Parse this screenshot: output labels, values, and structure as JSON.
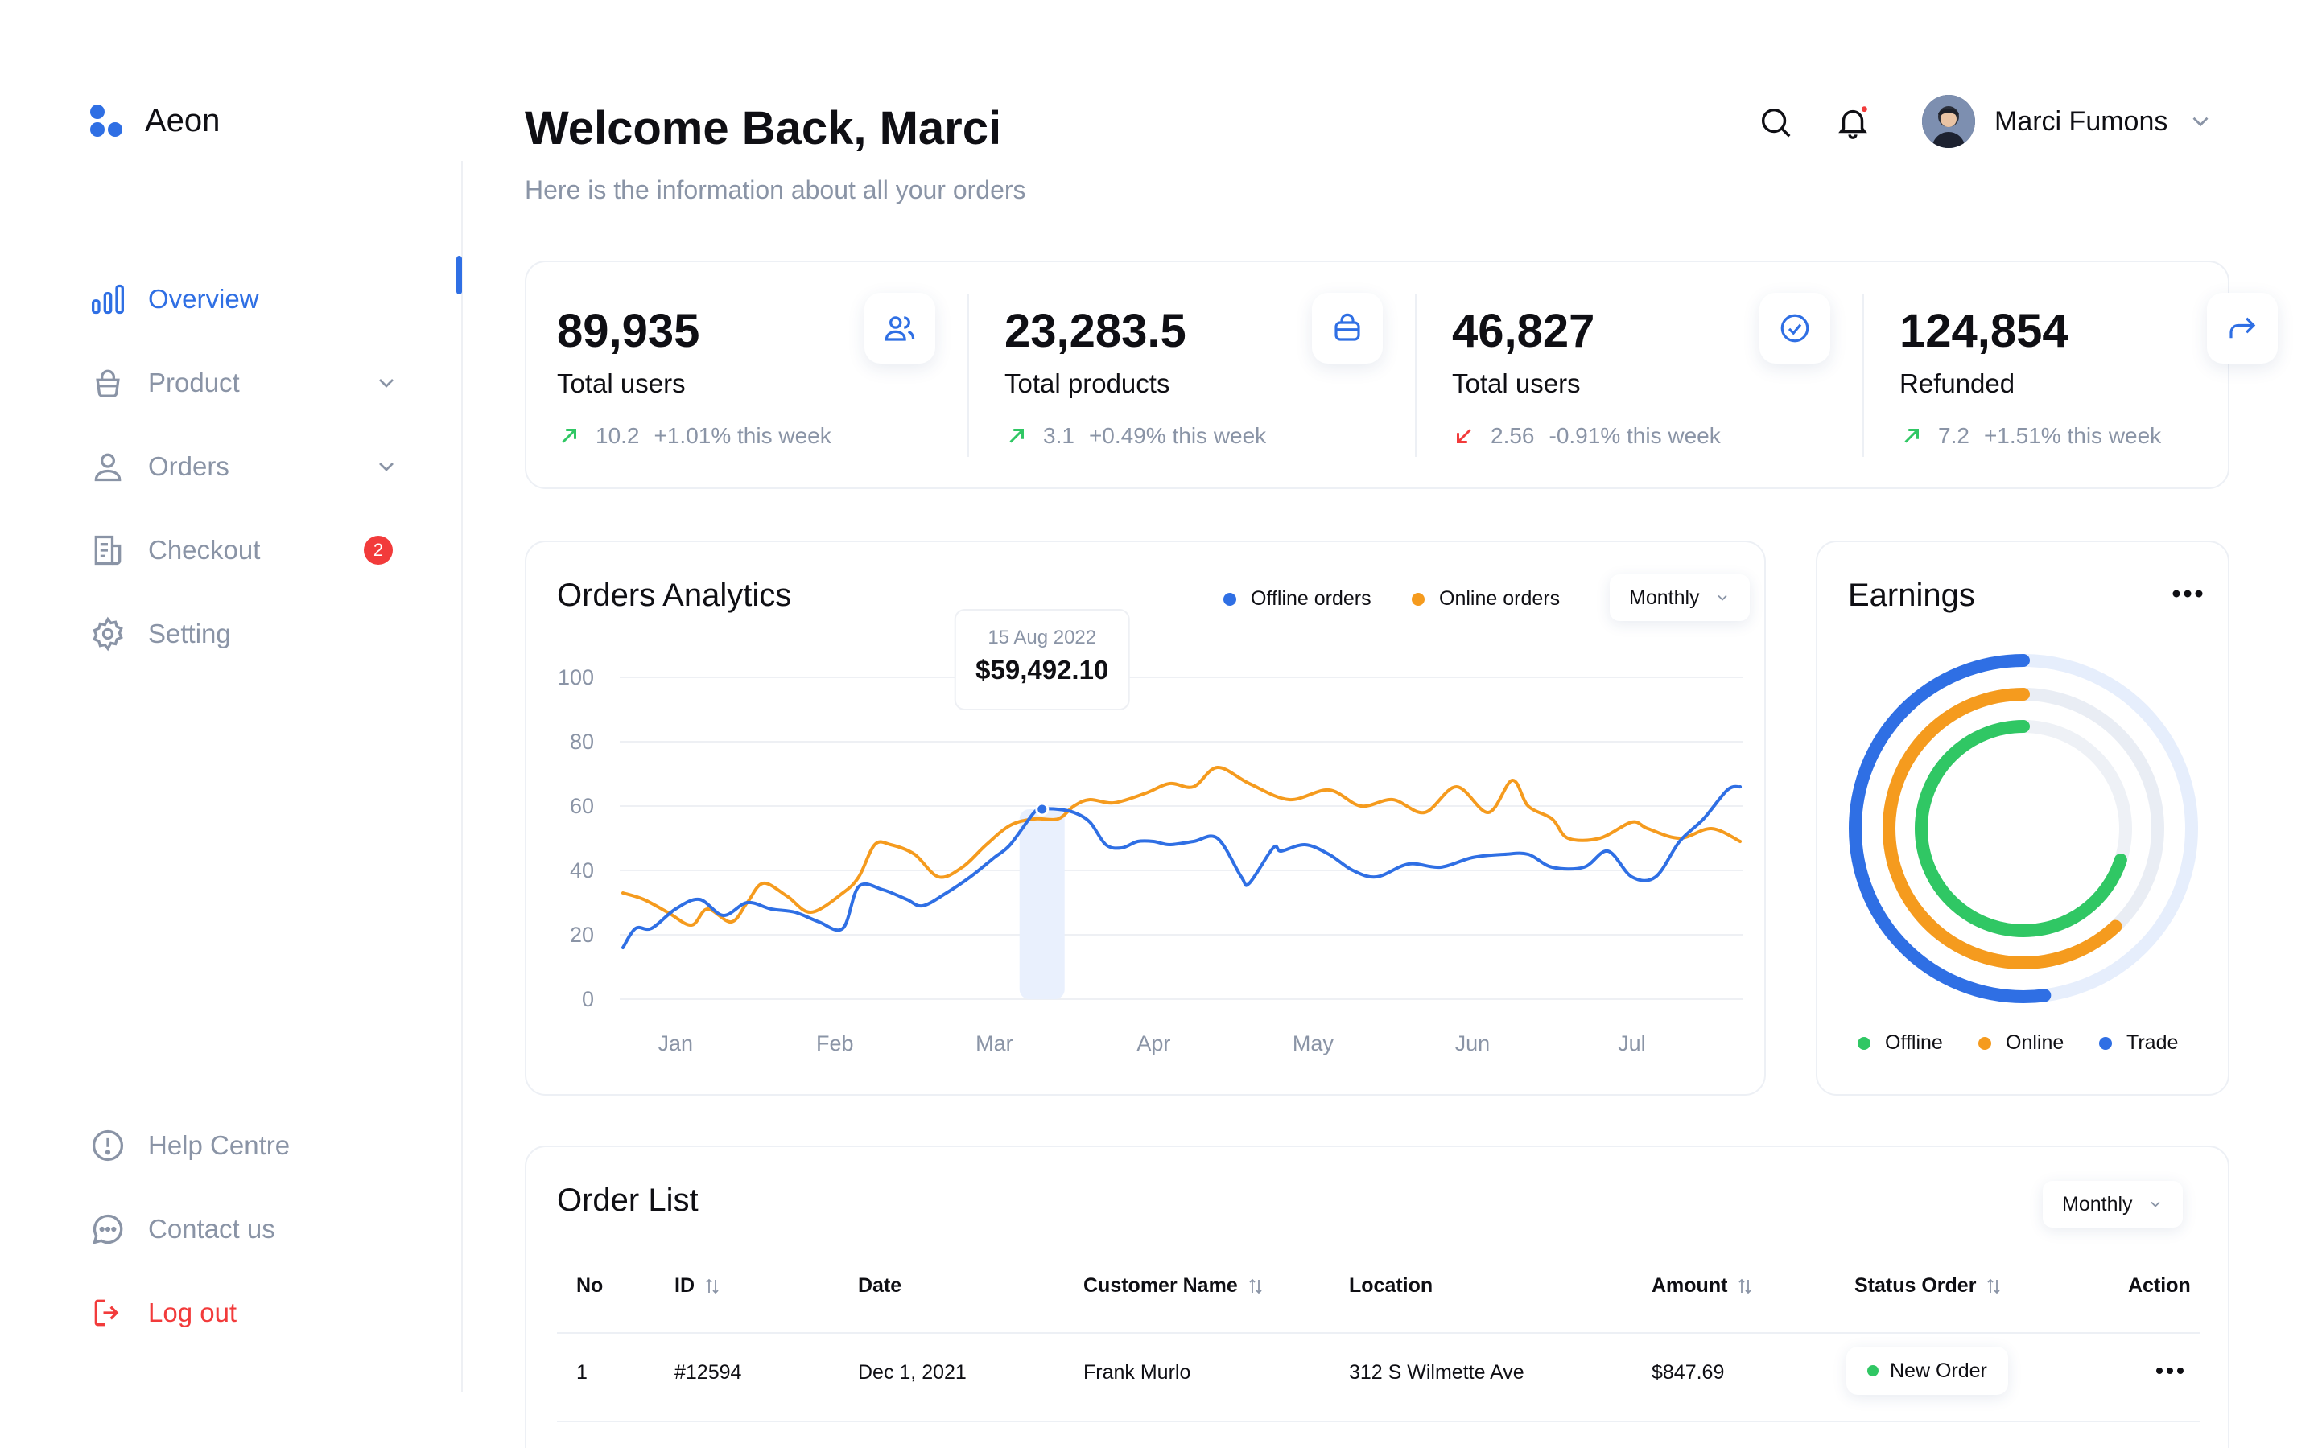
{
  "app": {
    "name": "Aeon"
  },
  "sidebar": {
    "items": [
      {
        "label": "Overview",
        "icon": "bar-chart-icon",
        "active": true
      },
      {
        "label": "Product",
        "icon": "basket-icon"
      },
      {
        "label": "Orders",
        "icon": "user-icon"
      },
      {
        "label": "Checkout",
        "icon": "receipt-icon",
        "badge": "2"
      },
      {
        "label": "Setting",
        "icon": "gear-icon"
      }
    ],
    "bottom": [
      {
        "label": "Help Centre",
        "icon": "info-circle-icon"
      },
      {
        "label": "Contact us",
        "icon": "chat-bubble-icon"
      },
      {
        "label": "Log out",
        "icon": "logout-icon"
      }
    ]
  },
  "header": {
    "title": "Welcome Back, Marci",
    "subtitle": "Here is the information about all your orders",
    "user_name": "Marci Fumons"
  },
  "stats": [
    {
      "value": "89,935",
      "label": "Total users",
      "delta": "10.2",
      "change": "+1.01% this week",
      "direction": "up",
      "icon": "users-icon"
    },
    {
      "value": "23,283.5",
      "label": "Total products",
      "delta": "3.1",
      "change": "+0.49% this week",
      "direction": "up",
      "icon": "bag-icon"
    },
    {
      "value": "46,827",
      "label": "Total users",
      "delta": "2.56",
      "change": "-0.91% this week",
      "direction": "down",
      "icon": "check-circle-icon"
    },
    {
      "value": "124,854",
      "label": "Refunded",
      "delta": "7.2",
      "change": "+1.51% this week",
      "direction": "up",
      "icon": "share-arrow-icon"
    }
  ],
  "analytics": {
    "title": "Orders Analytics",
    "period": "Monthly",
    "tooltip_date": "15 Aug 2022",
    "tooltip_value": "$59,492.10"
  },
  "chart_data": {
    "type": "line",
    "title": "Orders Analytics",
    "categories": [
      "Jan",
      "Feb",
      "Mar",
      "Apr",
      "May",
      "Jun",
      "Jul"
    ],
    "yticks": [
      0,
      20,
      40,
      60,
      80,
      100
    ],
    "ylim": [
      0,
      100
    ],
    "xlim": [
      -0.35,
      6.7
    ],
    "legend": "top-right",
    "grid": true,
    "series": [
      {
        "name": "Offline orders",
        "color": "#2f6fe4",
        "x": [
          -0.33,
          -0.25,
          -0.15,
          0.0,
          0.15,
          0.3,
          0.45,
          0.6,
          0.75,
          0.9,
          1.05,
          1.15,
          1.3,
          1.45,
          1.55,
          1.7,
          1.85,
          2.0,
          2.1,
          2.25,
          2.3,
          2.4,
          2.5,
          2.6,
          2.7,
          2.8,
          2.9,
          3.0,
          3.1,
          3.25,
          3.4,
          3.55,
          3.6,
          3.75,
          3.8,
          3.95,
          4.1,
          4.25,
          4.4,
          4.6,
          4.8,
          5.0,
          5.2,
          5.35,
          5.5,
          5.7,
          5.85,
          6.0,
          6.15,
          6.3,
          6.45,
          6.6,
          6.68
        ],
        "y": [
          16,
          22,
          22,
          28,
          31,
          26,
          30,
          28,
          27,
          24,
          22,
          35,
          34,
          31,
          29,
          33,
          38,
          44,
          48,
          58,
          59,
          59,
          58,
          55,
          48,
          47,
          49,
          49,
          48,
          49,
          50,
          38,
          36,
          47,
          46,
          48,
          45,
          40,
          38,
          42,
          41,
          44,
          45,
          45,
          41,
          41,
          46,
          38,
          38,
          49,
          56,
          65,
          66
        ]
      },
      {
        "name": "Online orders",
        "color": "#f59b1e",
        "x": [
          -0.33,
          -0.2,
          -0.05,
          0.1,
          0.2,
          0.35,
          0.45,
          0.55,
          0.7,
          0.85,
          1.05,
          1.15,
          1.25,
          1.35,
          1.5,
          1.65,
          1.8,
          1.95,
          2.1,
          2.25,
          2.4,
          2.5,
          2.6,
          2.75,
          2.95,
          3.1,
          3.25,
          3.4,
          3.6,
          3.85,
          4.1,
          4.3,
          4.5,
          4.7,
          4.9,
          5.1,
          5.25,
          5.35,
          5.5,
          5.6,
          5.8,
          6.0,
          6.1,
          6.3,
          6.5,
          6.68
        ],
        "y": [
          33,
          31,
          27,
          23,
          28,
          24,
          30,
          36,
          32,
          27,
          33,
          38,
          48,
          48,
          45,
          38,
          41,
          48,
          54,
          56,
          56,
          60,
          62,
          61,
          64,
          67,
          66,
          72,
          67,
          62,
          65,
          60,
          62,
          58,
          66,
          58,
          68,
          60,
          56,
          50,
          50,
          55,
          53,
          50,
          53,
          49
        ]
      }
    ]
  },
  "earnings": {
    "title": "Earnings",
    "legend": [
      {
        "label": "Offline",
        "color": "#30c764"
      },
      {
        "label": "Online",
        "color": "#f59b1e"
      },
      {
        "label": "Trade",
        "color": "#2f6fe4"
      }
    ],
    "rings": [
      {
        "label": "Trade",
        "fraction": 0.52,
        "color": "#2f6fe4"
      },
      {
        "label": "Online",
        "fraction": 0.62,
        "color": "#f59b1e"
      },
      {
        "label": "Offline",
        "fraction": 0.7,
        "color": "#30c764"
      }
    ]
  },
  "orders": {
    "title": "Order List",
    "period": "Monthly",
    "columns": [
      "No",
      "ID",
      "Date",
      "Customer Name",
      "Location",
      "Amount",
      "Status Order",
      "Action"
    ],
    "rows": [
      {
        "no": "1",
        "id": "#12594",
        "date": "Dec 1, 2021",
        "customer": "Frank Murlo",
        "location": "312 S Wilmette Ave",
        "amount": "$847.69",
        "status": "New Order"
      }
    ]
  }
}
